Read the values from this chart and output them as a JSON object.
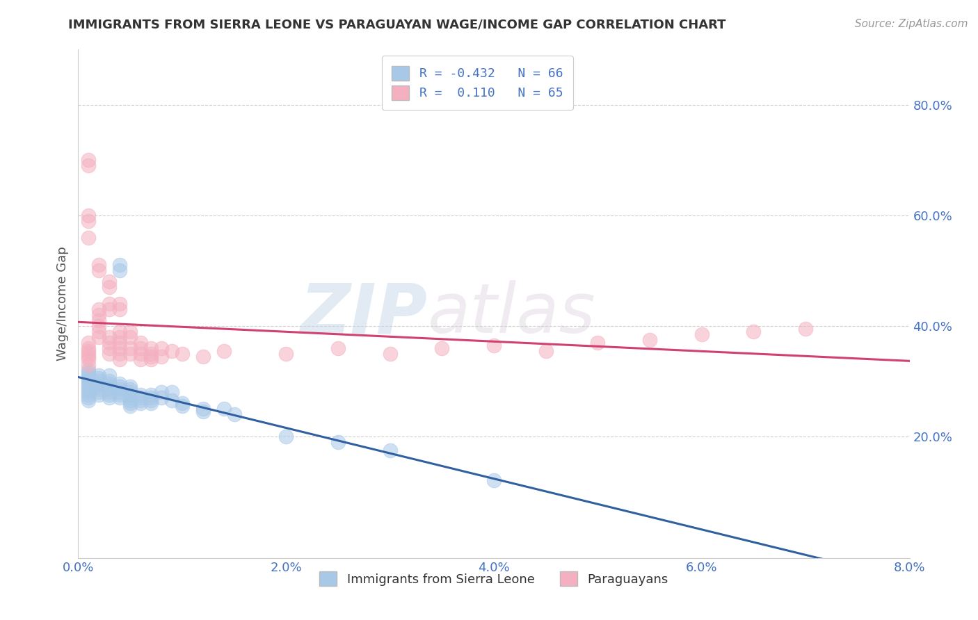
{
  "title": "IMMIGRANTS FROM SIERRA LEONE VS PARAGUAYAN WAGE/INCOME GAP CORRELATION CHART",
  "source_text": "Source: ZipAtlas.com",
  "ylabel": "Wage/Income Gap",
  "watermark_zip": "ZIP",
  "watermark_atlas": "atlas",
  "xlim": [
    0.0,
    0.08
  ],
  "ylim": [
    -0.02,
    0.9
  ],
  "xtick_labels": [
    "0.0%",
    "2.0%",
    "4.0%",
    "6.0%",
    "8.0%"
  ],
  "xtick_values": [
    0.0,
    0.02,
    0.04,
    0.06,
    0.08
  ],
  "ytick_labels": [
    "20.0%",
    "40.0%",
    "60.0%",
    "80.0%"
  ],
  "ytick_values": [
    0.2,
    0.4,
    0.6,
    0.8
  ],
  "legend": {
    "blue_label": "Immigrants from Sierra Leone",
    "pink_label": "Paraguayans",
    "blue_R": "R = -0.432",
    "blue_N": "N = 66",
    "pink_R": "R =  0.110",
    "pink_N": "N = 65"
  },
  "blue_color": "#a8c8e8",
  "pink_color": "#f4b0c0",
  "blue_line_color": "#3060a0",
  "pink_line_color": "#d04070",
  "axis_color": "#4472c4",
  "background_color": "#ffffff",
  "grid_color": "#b0b0b0",
  "blue_points": [
    [
      0.001,
      0.32
    ],
    [
      0.001,
      0.31
    ],
    [
      0.001,
      0.3
    ],
    [
      0.001,
      0.295
    ],
    [
      0.001,
      0.285
    ],
    [
      0.001,
      0.305
    ],
    [
      0.001,
      0.29
    ],
    [
      0.001,
      0.315
    ],
    [
      0.001,
      0.28
    ],
    [
      0.001,
      0.275
    ],
    [
      0.001,
      0.27
    ],
    [
      0.001,
      0.265
    ],
    [
      0.002,
      0.3
    ],
    [
      0.002,
      0.31
    ],
    [
      0.002,
      0.295
    ],
    [
      0.002,
      0.285
    ],
    [
      0.002,
      0.275
    ],
    [
      0.002,
      0.29
    ],
    [
      0.002,
      0.28
    ],
    [
      0.002,
      0.305
    ],
    [
      0.003,
      0.29
    ],
    [
      0.003,
      0.285
    ],
    [
      0.003,
      0.295
    ],
    [
      0.003,
      0.3
    ],
    [
      0.003,
      0.28
    ],
    [
      0.003,
      0.275
    ],
    [
      0.003,
      0.31
    ],
    [
      0.003,
      0.27
    ],
    [
      0.004,
      0.51
    ],
    [
      0.004,
      0.5
    ],
    [
      0.004,
      0.29
    ],
    [
      0.004,
      0.285
    ],
    [
      0.004,
      0.275
    ],
    [
      0.004,
      0.27
    ],
    [
      0.004,
      0.28
    ],
    [
      0.004,
      0.295
    ],
    [
      0.005,
      0.28
    ],
    [
      0.005,
      0.27
    ],
    [
      0.005,
      0.26
    ],
    [
      0.005,
      0.29
    ],
    [
      0.005,
      0.275
    ],
    [
      0.005,
      0.265
    ],
    [
      0.005,
      0.255
    ],
    [
      0.005,
      0.285
    ],
    [
      0.006,
      0.27
    ],
    [
      0.006,
      0.265
    ],
    [
      0.006,
      0.26
    ],
    [
      0.006,
      0.275
    ],
    [
      0.007,
      0.27
    ],
    [
      0.007,
      0.265
    ],
    [
      0.007,
      0.275
    ],
    [
      0.007,
      0.26
    ],
    [
      0.008,
      0.28
    ],
    [
      0.008,
      0.27
    ],
    [
      0.009,
      0.28
    ],
    [
      0.009,
      0.265
    ],
    [
      0.01,
      0.26
    ],
    [
      0.01,
      0.255
    ],
    [
      0.012,
      0.25
    ],
    [
      0.012,
      0.245
    ],
    [
      0.014,
      0.25
    ],
    [
      0.015,
      0.24
    ],
    [
      0.02,
      0.2
    ],
    [
      0.025,
      0.19
    ],
    [
      0.03,
      0.175
    ],
    [
      0.04,
      0.12
    ]
  ],
  "pink_points": [
    [
      0.001,
      0.7
    ],
    [
      0.001,
      0.69
    ],
    [
      0.001,
      0.6
    ],
    [
      0.001,
      0.59
    ],
    [
      0.001,
      0.56
    ],
    [
      0.001,
      0.37
    ],
    [
      0.001,
      0.36
    ],
    [
      0.001,
      0.355
    ],
    [
      0.001,
      0.345
    ],
    [
      0.001,
      0.34
    ],
    [
      0.001,
      0.33
    ],
    [
      0.001,
      0.35
    ],
    [
      0.002,
      0.51
    ],
    [
      0.002,
      0.5
    ],
    [
      0.002,
      0.43
    ],
    [
      0.002,
      0.42
    ],
    [
      0.002,
      0.41
    ],
    [
      0.002,
      0.4
    ],
    [
      0.002,
      0.39
    ],
    [
      0.002,
      0.38
    ],
    [
      0.003,
      0.48
    ],
    [
      0.003,
      0.47
    ],
    [
      0.003,
      0.44
    ],
    [
      0.003,
      0.43
    ],
    [
      0.003,
      0.38
    ],
    [
      0.003,
      0.37
    ],
    [
      0.003,
      0.36
    ],
    [
      0.003,
      0.35
    ],
    [
      0.004,
      0.44
    ],
    [
      0.004,
      0.43
    ],
    [
      0.004,
      0.39
    ],
    [
      0.004,
      0.38
    ],
    [
      0.004,
      0.37
    ],
    [
      0.004,
      0.36
    ],
    [
      0.004,
      0.35
    ],
    [
      0.004,
      0.34
    ],
    [
      0.005,
      0.39
    ],
    [
      0.005,
      0.38
    ],
    [
      0.005,
      0.36
    ],
    [
      0.005,
      0.35
    ],
    [
      0.006,
      0.37
    ],
    [
      0.006,
      0.36
    ],
    [
      0.006,
      0.35
    ],
    [
      0.006,
      0.34
    ],
    [
      0.007,
      0.36
    ],
    [
      0.007,
      0.35
    ],
    [
      0.007,
      0.345
    ],
    [
      0.007,
      0.34
    ],
    [
      0.008,
      0.36
    ],
    [
      0.008,
      0.345
    ],
    [
      0.009,
      0.355
    ],
    [
      0.01,
      0.35
    ],
    [
      0.012,
      0.345
    ],
    [
      0.014,
      0.355
    ],
    [
      0.02,
      0.35
    ],
    [
      0.025,
      0.36
    ],
    [
      0.03,
      0.35
    ],
    [
      0.035,
      0.36
    ],
    [
      0.04,
      0.365
    ],
    [
      0.045,
      0.355
    ],
    [
      0.05,
      0.37
    ],
    [
      0.055,
      0.375
    ],
    [
      0.06,
      0.385
    ],
    [
      0.065,
      0.39
    ],
    [
      0.07,
      0.395
    ]
  ]
}
